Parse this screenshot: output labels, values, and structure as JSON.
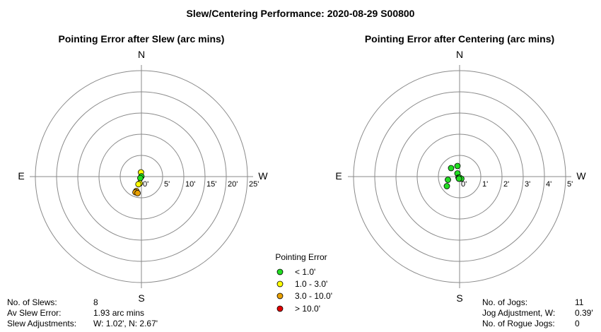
{
  "title": "Slew/Centering Performance: 2020-08-29 S00800",
  "colors": {
    "lt1": "#22dd22",
    "1to3": "#ffff00",
    "3to10": "#e8a000",
    "gt10": "#e00000",
    "ring": "#8a8a8a"
  },
  "chart_data": [
    {
      "type": "scatter",
      "title": "Pointing Error after Slew (arc mins)",
      "projection": "polar",
      "compass": {
        "n": "N",
        "s": "S",
        "e": "E",
        "w": "W"
      },
      "rmax": 25,
      "tick_labels": [
        "0'",
        "5'",
        "10'",
        "15'",
        "20'",
        "25'"
      ],
      "points": [
        {
          "w": -0.1,
          "n": 1.0,
          "cat": "1to3"
        },
        {
          "w": 0.0,
          "n": 0.05,
          "cat": "lt1"
        },
        {
          "w": -0.25,
          "n": -0.35,
          "cat": "lt1"
        },
        {
          "w": -0.4,
          "n": -1.6,
          "cat": "1to3"
        },
        {
          "w": -0.7,
          "n": -1.8,
          "cat": "1to3"
        },
        {
          "w": -1.2,
          "n": -3.4,
          "cat": "3to10"
        },
        {
          "w": -1.4,
          "n": -3.7,
          "cat": "3to10"
        },
        {
          "w": -0.9,
          "n": -3.9,
          "cat": "3to10"
        }
      ]
    },
    {
      "type": "scatter",
      "title": "Pointing Error after Centering (arc mins)",
      "projection": "polar",
      "compass": {
        "n": "N",
        "s": "S",
        "e": "E",
        "w": "W"
      },
      "rmax": 5,
      "tick_labels": [
        "0'",
        "1'",
        "2'",
        "3'",
        "4'",
        "5'"
      ],
      "points": [
        {
          "w": -0.1,
          "n": 0.5,
          "cat": "lt1"
        },
        {
          "w": -0.4,
          "n": 0.4,
          "cat": "lt1"
        },
        {
          "w": -0.1,
          "n": 0.15,
          "cat": "lt1"
        },
        {
          "w": -0.05,
          "n": -0.05,
          "cat": "lt1"
        },
        {
          "w": 0.0,
          "n": -0.05,
          "cat": "lt1"
        },
        {
          "w": 0.08,
          "n": -0.1,
          "cat": "lt1"
        },
        {
          "w": -0.03,
          "n": -0.1,
          "cat": "lt1"
        },
        {
          "w": -0.55,
          "n": -0.15,
          "cat": "lt1"
        },
        {
          "w": -0.6,
          "n": -0.45,
          "cat": "lt1"
        }
      ]
    }
  ],
  "legend": {
    "title": "Pointing Error",
    "items": [
      {
        "label": "< 1.0'",
        "cat": "lt1"
      },
      {
        "label": "1.0 - 3.0'",
        "cat": "1to3"
      },
      {
        "label": "3.0 - 10.0'",
        "cat": "3to10"
      },
      {
        "label": "> 10.0'",
        "cat": "gt10"
      }
    ]
  },
  "slew_stats": [
    {
      "label": "No. of Slews:",
      "value": "8"
    },
    {
      "label": "Av Slew Error:",
      "value": "1.93 arc mins"
    },
    {
      "label": "Slew Adjustments:",
      "value": "W: 1.02', N: 2.67'"
    }
  ],
  "jog_stats": [
    {
      "label": "No. of Jogs:",
      "value": "11"
    },
    {
      "label": "Jog Adjustment, W:",
      "value": "0.39'"
    },
    {
      "label": "No. of Rogue Jogs:",
      "value": "0"
    }
  ]
}
